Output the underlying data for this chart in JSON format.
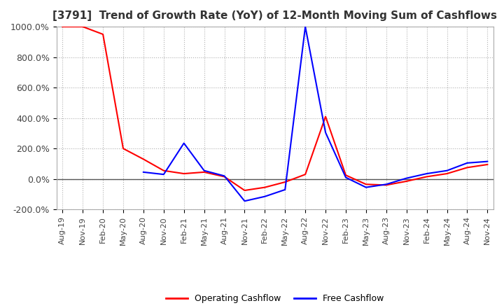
{
  "title": "[3791]  Trend of Growth Rate (YoY) of 12-Month Moving Sum of Cashflows",
  "ylim": [
    -200,
    1000
  ],
  "yticks": [
    -200,
    0,
    200,
    400,
    600,
    800,
    1000
  ],
  "ytick_labels": [
    "-200.0%",
    "0.0%",
    "200.0%",
    "400.0%",
    "600.0%",
    "800.0%",
    "1000.0%"
  ],
  "background_color": "#ffffff",
  "grid_color": "#b0b0b0",
  "legend_labels": [
    "Operating Cashflow",
    "Free Cashflow"
  ],
  "legend_colors": [
    "#ff0000",
    "#0000ff"
  ],
  "x_labels": [
    "Aug-19",
    "Nov-19",
    "Feb-20",
    "May-20",
    "Aug-20",
    "Nov-20",
    "Feb-21",
    "May-21",
    "Aug-21",
    "Nov-21",
    "Feb-22",
    "May-22",
    "Aug-22",
    "Nov-22",
    "Feb-23",
    "May-23",
    "Aug-23",
    "Nov-23",
    "Feb-24",
    "May-24",
    "Aug-24",
    "Nov-24"
  ],
  "operating_cashflow": [
    1000,
    1000,
    950,
    200,
    130,
    55,
    35,
    45,
    15,
    -75,
    -55,
    -20,
    30,
    410,
    25,
    -35,
    -40,
    -15,
    15,
    35,
    75,
    95
  ],
  "free_cashflow": [
    null,
    null,
    null,
    null,
    45,
    30,
    235,
    55,
    20,
    -145,
    -115,
    -70,
    1000,
    305,
    10,
    -55,
    -35,
    5,
    35,
    55,
    105,
    115
  ]
}
